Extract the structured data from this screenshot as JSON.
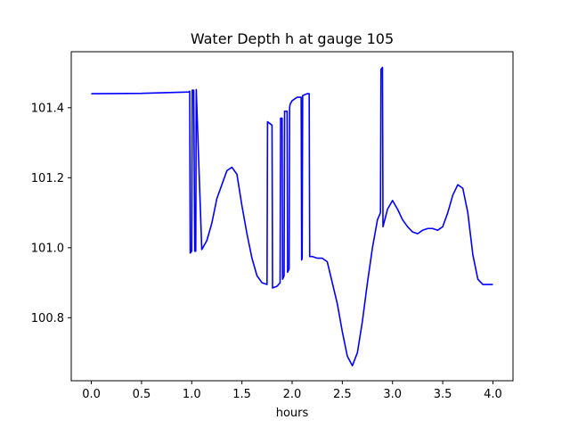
{
  "chart_data": {
    "type": "line",
    "title": "Water Depth h at gauge 105",
    "xlabel": "hours",
    "ylabel": "",
    "xlim": [
      -0.2,
      4.2
    ],
    "ylim": [
      100.62,
      101.56
    ],
    "xticks": [
      0.0,
      0.5,
      1.0,
      1.5,
      2.0,
      2.5,
      3.0,
      3.5,
      4.0
    ],
    "xtick_labels": [
      "0.0",
      "0.5",
      "1.0",
      "1.5",
      "2.0",
      "2.5",
      "3.0",
      "3.5",
      "4.0"
    ],
    "yticks": [
      100.8,
      101.0,
      101.2,
      101.4
    ],
    "ytick_labels": [
      "100.8",
      "101.0",
      "101.2",
      "101.4"
    ],
    "grid": false,
    "series": [
      {
        "color": "#0000ff",
        "x": [
          0.0,
          0.5,
          0.97,
          0.98,
          0.985,
          1.0,
          1.005,
          1.02,
          1.03,
          1.04,
          1.045,
          1.1,
          1.15,
          1.2,
          1.25,
          1.3,
          1.35,
          1.4,
          1.45,
          1.5,
          1.55,
          1.6,
          1.65,
          1.7,
          1.75,
          1.755,
          1.8,
          1.805,
          1.85,
          1.88,
          1.885,
          1.9,
          1.905,
          1.92,
          1.925,
          1.95,
          1.955,
          1.97,
          1.975,
          1.98,
          2.0,
          2.05,
          2.09,
          2.095,
          2.1,
          2.105,
          2.15,
          2.17,
          2.175,
          2.2,
          2.25,
          2.3,
          2.35,
          2.4,
          2.45,
          2.5,
          2.55,
          2.6,
          2.65,
          2.7,
          2.75,
          2.8,
          2.85,
          2.88,
          2.885,
          2.9,
          2.905,
          2.95,
          3.0,
          3.05,
          3.1,
          3.15,
          3.2,
          3.25,
          3.3,
          3.35,
          3.4,
          3.45,
          3.5,
          3.55,
          3.6,
          3.65,
          3.7,
          3.75,
          3.8,
          3.85,
          3.9,
          3.95,
          4.0
        ],
        "y": [
          101.44,
          101.441,
          101.445,
          101.447,
          100.985,
          100.99,
          101.45,
          101.45,
          100.99,
          100.99,
          101.452,
          100.995,
          101.02,
          101.07,
          101.14,
          101.18,
          101.22,
          101.23,
          101.21,
          101.12,
          101.04,
          100.97,
          100.92,
          100.9,
          100.895,
          101.36,
          101.35,
          100.885,
          100.89,
          100.9,
          101.37,
          101.37,
          100.91,
          100.92,
          101.39,
          101.39,
          100.93,
          100.94,
          101.4,
          101.41,
          101.42,
          101.43,
          101.43,
          100.965,
          100.97,
          101.435,
          101.44,
          101.44,
          100.975,
          100.975,
          100.97,
          100.97,
          100.96,
          100.9,
          100.84,
          100.76,
          100.69,
          100.663,
          100.7,
          100.79,
          100.9,
          101.0,
          101.08,
          101.1,
          101.51,
          101.515,
          101.06,
          101.11,
          101.135,
          101.11,
          101.08,
          101.06,
          101.045,
          101.04,
          101.05,
          101.055,
          101.055,
          101.05,
          101.06,
          101.1,
          101.15,
          101.18,
          101.17,
          101.1,
          100.98,
          100.91,
          100.895,
          100.895,
          100.895
        ]
      }
    ]
  }
}
